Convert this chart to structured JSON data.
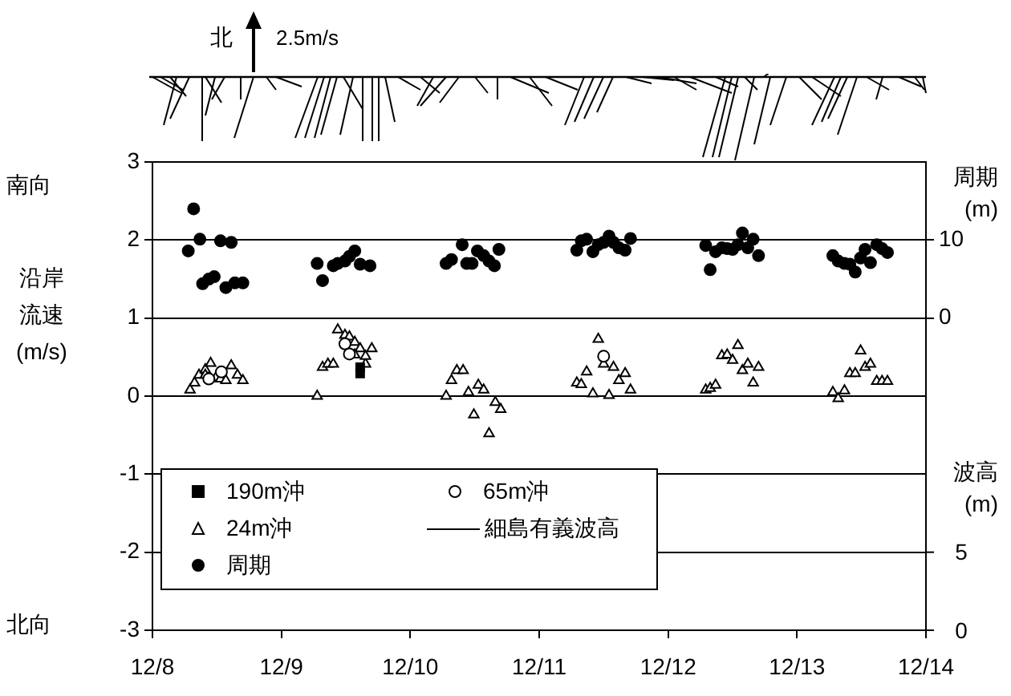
{
  "chart_data": {
    "type": "scatter",
    "ylabel": "沿岸流速(m/s)",
    "y2label": "周期(m)",
    "y3label": "波高(m)",
    "annotations": [
      "北",
      "2.5m/s",
      "南向",
      "北向"
    ],
    "xlim": [
      "--12-08",
      "--12-14"
    ],
    "xticks": [
      {
        "value": "--12-08",
        "label": "12/8"
      },
      {
        "value": "--12-09",
        "label": "12/9"
      },
      {
        "value": "--12-10",
        "label": "12/10"
      },
      {
        "value": "--12-11",
        "label": "12/11"
      },
      {
        "value": "--12-12",
        "label": "12/12"
      },
      {
        "value": "--12-13",
        "label": "12/13"
      },
      {
        "value": "--12-14",
        "label": "12/14"
      }
    ],
    "ylim": [
      -3,
      3
    ],
    "yticks": [
      -3,
      -2,
      -1,
      0,
      1,
      2,
      3
    ],
    "y2lim": [
      -40,
      20
    ],
    "y2ticks": [
      0,
      10
    ],
    "y3lim": [
      0,
      30
    ],
    "y3ticks": [
      0,
      5
    ],
    "grid": "y",
    "legend": "bottom left",
    "series": [
      {
        "name": "190m沖",
        "color": "#000000",
        "marker": "square",
        "x": [
          "--12-09T14:40",
          "--12-09T14:40"
        ],
        "values": [
          0.37,
          0.29
        ]
      },
      {
        "name": "65m沖",
        "color": "#ffffff",
        "marker": "circle",
        "x": [
          "--12-08T10:30",
          "--12-08T12:50",
          "--12-09T11:50",
          "--12-09T12:40",
          "--12-11T12:00"
        ],
        "values": [
          0.22,
          0.31,
          0.67,
          0.54,
          0.51
        ]
      },
      {
        "name": "24m沖",
        "color": "#ffffff",
        "marker": "triangle",
        "x": [
          "--12-08T07:00",
          "--12-08T07:50",
          "--12-08T08:40",
          "--12-08T09:50",
          "--12-08T10:50",
          "--12-08T11:50",
          "--12-08T12:40",
          "--12-08T13:40",
          "--12-08T14:40",
          "--12-08T15:50",
          "--12-08T16:50",
          "--12-08T09:50",
          "--12-09T06:40",
          "--12-09T07:40",
          "--12-09T08:40",
          "--12-09T09:40",
          "--12-09T10:30",
          "--12-09T11:50",
          "--12-09T12:40",
          "--12-09T13:40",
          "--12-09T14:40",
          "--12-09T15:40",
          "--12-09T16:50",
          "--12-09T13:40",
          "--12-09T15:40",
          "--12-10T06:40",
          "--12-10T07:40",
          "--12-10T08:40",
          "--12-10T09:50",
          "--12-10T10:50",
          "--12-10T11:50",
          "--12-10T12:40",
          "--12-10T13:40",
          "--12-10T14:40",
          "--12-10T15:50",
          "--12-10T16:50",
          "--12-11T07:00",
          "--12-11T07:50",
          "--12-11T08:50",
          "--12-11T10:00",
          "--12-11T11:00",
          "--12-11T12:00",
          "--12-11T13:00",
          "--12-11T13:50",
          "--12-11T14:50",
          "--12-11T16:00",
          "--12-11T17:00",
          "--12-12T07:00",
          "--12-12T07:50",
          "--12-12T08:50",
          "--12-12T10:00",
          "--12-12T11:00",
          "--12-12T12:00",
          "--12-12T13:00",
          "--12-12T13:50",
          "--12-12T14:50",
          "--12-12T15:50",
          "--12-12T16:50",
          "--12-13T06:40",
          "--12-13T07:40",
          "--12-13T08:50",
          "--12-13T09:50",
          "--12-13T10:50",
          "--12-13T11:50",
          "--12-13T12:40",
          "--12-13T13:40",
          "--12-13T14:50",
          "--12-13T15:50",
          "--12-13T16:50"
        ],
        "values": [
          0.08,
          0.17,
          0.27,
          0.34,
          0.42,
          0.24,
          0.22,
          0.2,
          0.39,
          0.27,
          0.2,
          0.27,
          0,
          0.37,
          0.41,
          0.41,
          0.85,
          0.78,
          0.76,
          0.69,
          0.61,
          0.41,
          0.61,
          0.53,
          0.51,
          0,
          0.2,
          0.33,
          0.33,
          0.05,
          -0.24,
          0.14,
          0.08,
          -0.48,
          -0.08,
          -0.17,
          0.17,
          0.15,
          0.31,
          0.03,
          0.73,
          0.41,
          0.01,
          0.37,
          0.2,
          0.29,
          0.08,
          0.08,
          0.1,
          0.14,
          0.52,
          0.53,
          0.46,
          0.65,
          0.33,
          0.41,
          0.17,
          0.37,
          0.05,
          -0.03,
          0.07,
          0.29,
          0.29,
          0.58,
          0.37,
          0.41,
          0.19,
          0.19,
          0.19
        ]
      },
      {
        "name": "細島有義波高",
        "color": "#000000",
        "type": "line",
        "axis": "y3"
      },
      {
        "name": "周期",
        "color": "#000000",
        "marker": "circle",
        "axis": "y2",
        "x": [
          "--12-08T07:40",
          "--12-08T06:40",
          "--12-08T08:50",
          "--12-08T12:40",
          "--12-08T14:40",
          "--12-08T09:20",
          "--12-08T10:30",
          "--12-08T11:30",
          "--12-08T13:40",
          "--12-08T15:20",
          "--12-08T16:50",
          "--12-09T06:40",
          "--12-09T07:40",
          "--12-09T09:40",
          "--12-09T10:30",
          "--12-09T11:50",
          "--12-09T12:40",
          "--12-09T13:40",
          "--12-09T14:40",
          "--12-09T16:30",
          "--12-10T06:40",
          "--12-10T07:40",
          "--12-10T09:40",
          "--12-10T10:30",
          "--12-10T11:30",
          "--12-10T12:30",
          "--12-10T13:40",
          "--12-10T14:40",
          "--12-10T15:40",
          "--12-10T16:30",
          "--12-11T07:00",
          "--12-11T07:50",
          "--12-11T08:50",
          "--12-11T10:00",
          "--12-11T11:00",
          "--12-11T12:00",
          "--12-11T13:00",
          "--12-11T13:50",
          "--12-11T14:50",
          "--12-11T16:00",
          "--12-11T17:00",
          "--12-12T07:00",
          "--12-12T07:50",
          "--12-12T08:50",
          "--12-12T10:00",
          "--12-12T11:00",
          "--12-12T12:00",
          "--12-12T13:00",
          "--12-12T13:50",
          "--12-12T14:50",
          "--12-12T15:50",
          "--12-12T16:50",
          "--12-13T06:40",
          "--12-13T07:40",
          "--12-13T08:50",
          "--12-13T09:50",
          "--12-13T10:50",
          "--12-13T11:50",
          "--12-13T12:40",
          "--12-13T13:40",
          "--12-13T14:50",
          "--12-13T15:50",
          "--12-13T16:50"
        ],
        "values": [
          14,
          8.6,
          10.1,
          9.9,
          9.7,
          4.4,
          5,
          5.3,
          3.9,
          4.5,
          4.5,
          7,
          4.8,
          6.7,
          7,
          7.3,
          7.9,
          8.6,
          6.9,
          6.7,
          7,
          7.5,
          9.4,
          7,
          7,
          8.6,
          8,
          7.3,
          6.7,
          8.8,
          8.7,
          9.9,
          10.1,
          8.5,
          9.4,
          9.7,
          10.5,
          9.7,
          9,
          8.7,
          10.2,
          9.3,
          6.2,
          8.5,
          9,
          8.9,
          8.8,
          9.4,
          10.9,
          9,
          10.1,
          8,
          8,
          7.3,
          7,
          6.9,
          5.9,
          7.7,
          8.8,
          7.1,
          9.4,
          8.9,
          8.4
        ]
      }
    ]
  }
}
